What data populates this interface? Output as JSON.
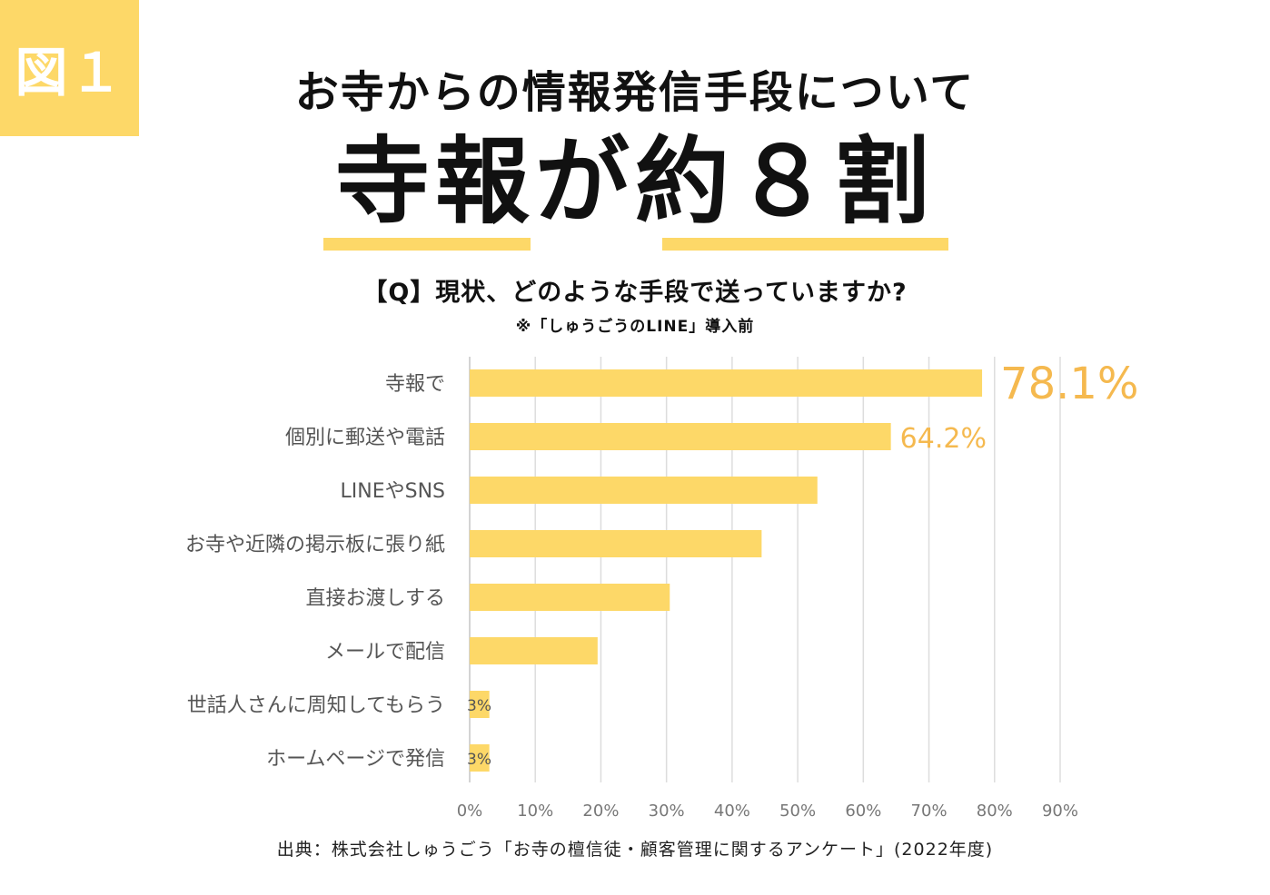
{
  "badge": {
    "label": "図１"
  },
  "header": {
    "title": "お寺からの情報発信手段について",
    "headline": "寺報が約８割",
    "question": "【Q】現状、どのような手段で送っていますか?",
    "note": "※「しゅうごうのLINE」導入前"
  },
  "colors": {
    "bar": "#FDD868",
    "accent_label": "#F5B94F",
    "grid": "#dddddd",
    "category_text": "#555555"
  },
  "chart_data": {
    "type": "bar",
    "orientation": "horizontal",
    "categories": [
      "寺報で",
      "個別に郵送や電話",
      "LINEやSNS",
      "お寺や近隣の掲示板に張り紙",
      "直接お渡しする",
      "メールで配信",
      "世話人さんに周知してもらう",
      "ホームページで発信"
    ],
    "values": [
      78.1,
      64.2,
      53,
      44.5,
      30.5,
      19.5,
      3,
      3
    ],
    "data_labels": [
      "78.1%",
      "64.2%",
      "",
      "",
      "",
      "",
      "3%",
      "3%"
    ],
    "xlim": [
      0,
      90
    ],
    "xticks": [
      0,
      10,
      20,
      30,
      40,
      50,
      60,
      70,
      80,
      90
    ],
    "xtick_labels": [
      "0%",
      "10%",
      "20%",
      "30%",
      "40%",
      "50%",
      "60%",
      "70%",
      "80%",
      "90%"
    ],
    "grid": true,
    "xlabel": "",
    "ylabel": ""
  },
  "footer": {
    "source": "出典：株式会社しゅうごう「お寺の檀信徒・顧客管理に関するアンケート」(2022年度)"
  }
}
